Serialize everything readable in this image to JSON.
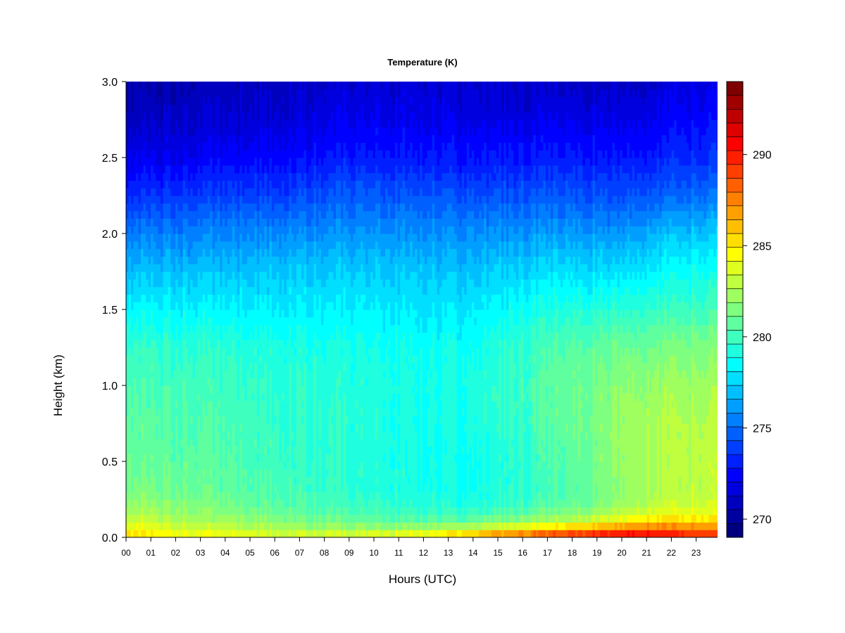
{
  "chart_data": {
    "type": "heatmap",
    "title": "Temperature (K)",
    "xlabel": "Hours (UTC)",
    "ylabel": "Height (km)",
    "x_ticks": [
      "00",
      "01",
      "02",
      "03",
      "04",
      "05",
      "06",
      "07",
      "08",
      "09",
      "10",
      "11",
      "12",
      "13",
      "14",
      "15",
      "16",
      "17",
      "18",
      "19",
      "20",
      "21",
      "22",
      "23"
    ],
    "xlim": [
      0,
      23.9
    ],
    "y_ticks": [
      "0.0",
      "0.5",
      "1.0",
      "1.5",
      "2.0",
      "2.5",
      "3.0"
    ],
    "ylim": [
      0.0,
      3.0
    ],
    "colorbar": {
      "ticks": [
        "270",
        "275",
        "280",
        "285",
        "290"
      ],
      "range": [
        269,
        294
      ],
      "colors": [
        "#00007f",
        "#00009f",
        "#0000bf",
        "#0000df",
        "#0000ff",
        "#001fff",
        "#003fff",
        "#005fff",
        "#007fff",
        "#009fff",
        "#00bfff",
        "#00dfff",
        "#00ffff",
        "#1fffdf",
        "#3fffbf",
        "#5fff9f",
        "#7fff7f",
        "#9fff5f",
        "#bfff3f",
        "#dfff1f",
        "#ffff00",
        "#ffdf00",
        "#ffbf00",
        "#ff9f00",
        "#ff7f00",
        "#ff5f00",
        "#ff3f00",
        "#ff1f00",
        "#ff0000",
        "#df0000",
        "#bf0000",
        "#9f0000",
        "#7f0000"
      ]
    },
    "heights_km": [
      0.0,
      0.05,
      0.1,
      0.2,
      0.3,
      0.5,
      0.75,
      1.0,
      1.25,
      1.5,
      1.75,
      2.0,
      2.25,
      2.5,
      2.75,
      3.0
    ],
    "profiles": [
      {
        "hour": 0,
        "temps_K": [
          285.5,
          285.0,
          283.5,
          282.2,
          281.5,
          281.0,
          280.8,
          280.3,
          279.8,
          278.5,
          277.0,
          275.5,
          273.5,
          272.0,
          271.0,
          270.5
        ]
      },
      {
        "hour": 3,
        "temps_K": [
          284.5,
          283.5,
          282.5,
          281.5,
          281.0,
          280.6,
          280.3,
          280.0,
          279.5,
          278.3,
          277.0,
          275.5,
          273.8,
          272.2,
          271.2,
          270.6
        ]
      },
      {
        "hour": 6,
        "temps_K": [
          284.0,
          283.0,
          281.8,
          280.8,
          280.3,
          280.0,
          279.8,
          279.6,
          279.2,
          278.2,
          277.2,
          275.8,
          274.0,
          272.5,
          271.5,
          271.0
        ]
      },
      {
        "hour": 9,
        "temps_K": [
          284.0,
          282.5,
          281.0,
          280.0,
          279.5,
          279.4,
          279.4,
          279.3,
          279.0,
          278.2,
          277.3,
          276.0,
          274.5,
          273.0,
          272.0,
          271.3
        ]
      },
      {
        "hour": 12,
        "temps_K": [
          285.0,
          283.0,
          280.8,
          279.5,
          279.0,
          278.9,
          279.0,
          279.0,
          278.8,
          278.0,
          277.2,
          276.0,
          274.5,
          273.0,
          272.0,
          271.5
        ]
      },
      {
        "hour": 14,
        "temps_K": [
          287.0,
          284.0,
          281.0,
          279.3,
          278.8,
          278.7,
          279.0,
          279.0,
          278.8,
          278.0,
          277.0,
          275.8,
          274.2,
          272.8,
          271.8,
          271.2
        ]
      },
      {
        "hour": 16,
        "temps_K": [
          289.0,
          285.5,
          282.0,
          280.0,
          279.5,
          279.5,
          279.8,
          280.0,
          279.7,
          278.8,
          277.5,
          276.0,
          274.3,
          272.8,
          271.8,
          271.0
        ]
      },
      {
        "hour": 18,
        "temps_K": [
          290.5,
          287.0,
          283.0,
          281.0,
          280.5,
          280.8,
          281.0,
          281.0,
          280.5,
          279.3,
          277.8,
          276.2,
          274.5,
          273.0,
          272.0,
          271.0
        ]
      },
      {
        "hour": 20,
        "temps_K": [
          291.5,
          288.5,
          284.5,
          282.2,
          281.8,
          282.0,
          282.0,
          281.8,
          281.0,
          279.5,
          277.8,
          276.0,
          274.2,
          272.8,
          271.8,
          271.0
        ]
      },
      {
        "hour": 21,
        "temps_K": [
          291.5,
          289.0,
          285.5,
          283.0,
          282.5,
          282.5,
          282.5,
          282.0,
          281.2,
          279.7,
          278.2,
          276.5,
          274.5,
          273.0,
          272.0,
          271.2
        ]
      },
      {
        "hour": 23,
        "temps_K": [
          290.0,
          288.0,
          285.5,
          283.5,
          283.0,
          283.0,
          282.8,
          282.2,
          281.5,
          280.0,
          278.8,
          277.2,
          275.0,
          273.5,
          272.5,
          271.8
        ]
      },
      {
        "hour": 23.9,
        "temps_K": [
          289.5,
          287.5,
          285.2,
          283.5,
          283.0,
          283.0,
          282.8,
          282.2,
          281.5,
          280.0,
          278.8,
          277.2,
          275.0,
          273.5,
          272.5,
          271.8
        ]
      }
    ]
  }
}
